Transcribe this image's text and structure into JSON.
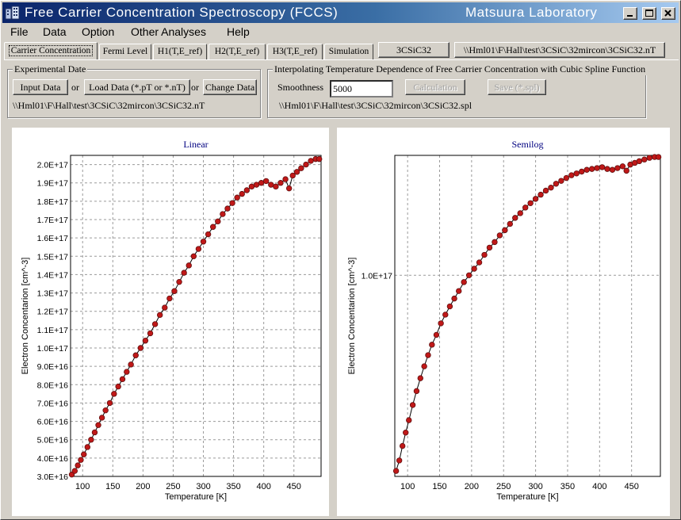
{
  "window": {
    "title": "Free Carrier Concentration Spectroscopy (FCCS)",
    "lab": "Matsuura Laboratory"
  },
  "menu": [
    "File",
    "Data",
    "Option",
    "Other Analyses",
    "Help"
  ],
  "tabs": [
    "Carrier Concentration",
    "Fermi Level",
    "H1(T,E_ref)",
    "H2(T,E_ref)",
    "H3(T,E_ref)",
    "Simulation"
  ],
  "header_fields": {
    "sample_name": "3CSiC32",
    "file_path": "\\\\Hml01\\F\\Hall\\test\\3CSiC\\32mircon\\3CSiC32.nT"
  },
  "experimental": {
    "legend": "Experimental Date",
    "input_button": "Input Data",
    "or1": "or",
    "load_button": "Load Data (*.pT or *.nT)",
    "or2": "or",
    "change_button": "Change Data",
    "path": "\\\\Hml01\\F\\Hall\\test\\3CSiC\\32mircon\\3CSiC32.nT"
  },
  "interpolation": {
    "legend": "Interpolating Temperature Dependence of Free Carrier Concentration with Cubic Spline Function",
    "smoothness_label": "Smoothness",
    "smoothness_value": "5000",
    "calc_button": "Calculation",
    "save_button": "Save (*.spl)",
    "path": "\\\\Hml01\\F\\Hall\\test\\3CSiC\\32mircon\\3CSiC32.spl"
  },
  "chart_data": [
    {
      "type": "scatter",
      "title": "Linear",
      "xlabel": "Temperature  [K]",
      "ylabel": "Electron Concentarion  [cm^-3]",
      "xlim": [
        80,
        495
      ],
      "ylim": [
        3e+16,
        2.05e+17
      ],
      "x_ticks": [
        100,
        150,
        200,
        250,
        300,
        350,
        400,
        450
      ],
      "x_tick_labels": [
        "100",
        "150",
        "200",
        "250",
        "300",
        "350",
        "400",
        "450"
      ],
      "y_ticks": [
        3e+16,
        4e+16,
        5e+16,
        6e+16,
        7e+16,
        8e+16,
        9e+16,
        1e+17,
        1.1e+17,
        1.2e+17,
        1.3e+17,
        1.4e+17,
        1.5e+17,
        1.6e+17,
        1.7e+17,
        1.8e+17,
        1.9e+17,
        2e+17
      ],
      "y_tick_labels": [
        "3.0E+16",
        "4.0E+16",
        "5.0E+16",
        "6.0E+16",
        "7.0E+16",
        "8.0E+16",
        "9.0E+16",
        "1.0E+17",
        "1.1E+17",
        "1.2E+17",
        "1.3E+17",
        "1.4E+17",
        "1.5E+17",
        "1.6E+17",
        "1.7E+17",
        "1.8E+17",
        "1.9E+17",
        "2.0E+17"
      ],
      "grid": true,
      "log_y": false,
      "x": [
        82,
        87,
        92,
        97,
        102,
        108,
        114,
        120,
        126,
        132,
        138,
        145,
        152,
        159,
        166,
        173,
        180,
        188,
        196,
        204,
        212,
        220,
        228,
        236,
        244,
        252,
        260,
        268,
        276,
        284,
        292,
        300,
        308,
        316,
        324,
        332,
        340,
        348,
        356,
        364,
        372,
        380,
        388,
        396,
        404,
        412,
        420,
        428,
        436,
        442,
        448,
        455,
        462,
        470,
        478,
        486,
        492
      ],
      "y": [
        3.1e+16,
        3.3e+16,
        3.6e+16,
        3.9e+16,
        4.2e+16,
        4.6e+16,
        5e+16,
        5.4e+16,
        5.8e+16,
        6.2e+16,
        6.6e+16,
        7e+16,
        7.5e+16,
        7.9e+16,
        8.3e+16,
        8.7e+16,
        9.1e+16,
        9.6e+16,
        1e+17,
        1.04e+17,
        1.08e+17,
        1.13e+17,
        1.18e+17,
        1.22e+17,
        1.27e+17,
        1.31e+17,
        1.36e+17,
        1.41e+17,
        1.45e+17,
        1.5e+17,
        1.54e+17,
        1.58e+17,
        1.62e+17,
        1.66e+17,
        1.69e+17,
        1.73e+17,
        1.76e+17,
        1.79e+17,
        1.82e+17,
        1.84e+17,
        1.86e+17,
        1.88e+17,
        1.89e+17,
        1.9e+17,
        1.91e+17,
        1.89e+17,
        1.88e+17,
        1.9e+17,
        1.92e+17,
        1.87e+17,
        1.94e+17,
        1.96e+17,
        1.98e+17,
        2e+17,
        2.02e+17,
        2.03e+17,
        2.03e+17
      ]
    },
    {
      "type": "scatter",
      "title": "Semilog",
      "xlabel": "Temperature  [K]",
      "ylabel": "Electron Concentarion  [cm^-3]",
      "xlim": [
        80,
        495
      ],
      "ylim": [
        3e+16,
        2.05e+17
      ],
      "x_ticks": [
        100,
        150,
        200,
        250,
        300,
        350,
        400,
        450
      ],
      "x_tick_labels": [
        "100",
        "150",
        "200",
        "250",
        "300",
        "350",
        "400",
        "450"
      ],
      "y_ticks": [
        1e+17
      ],
      "y_tick_labels": [
        "1.0E+17"
      ],
      "grid": true,
      "log_y": true,
      "x": [
        82,
        87,
        92,
        97,
        102,
        108,
        114,
        120,
        126,
        132,
        138,
        145,
        152,
        159,
        166,
        173,
        180,
        188,
        196,
        204,
        212,
        220,
        228,
        236,
        244,
        252,
        260,
        268,
        276,
        284,
        292,
        300,
        308,
        316,
        324,
        332,
        340,
        348,
        356,
        364,
        372,
        380,
        388,
        396,
        404,
        412,
        420,
        428,
        436,
        442,
        448,
        455,
        462,
        470,
        478,
        486,
        492
      ],
      "y": [
        3.1e+16,
        3.3e+16,
        3.6e+16,
        3.9e+16,
        4.2e+16,
        4.6e+16,
        5e+16,
        5.4e+16,
        5.8e+16,
        6.2e+16,
        6.6e+16,
        7e+16,
        7.5e+16,
        7.9e+16,
        8.3e+16,
        8.7e+16,
        9.1e+16,
        9.6e+16,
        1e+17,
        1.04e+17,
        1.08e+17,
        1.13e+17,
        1.18e+17,
        1.22e+17,
        1.27e+17,
        1.31e+17,
        1.36e+17,
        1.41e+17,
        1.45e+17,
        1.5e+17,
        1.54e+17,
        1.58e+17,
        1.62e+17,
        1.66e+17,
        1.69e+17,
        1.73e+17,
        1.76e+17,
        1.79e+17,
        1.82e+17,
        1.84e+17,
        1.86e+17,
        1.88e+17,
        1.89e+17,
        1.9e+17,
        1.91e+17,
        1.89e+17,
        1.88e+17,
        1.9e+17,
        1.92e+17,
        1.87e+17,
        1.94e+17,
        1.96e+17,
        1.98e+17,
        2e+17,
        2.02e+17,
        2.03e+17,
        2.03e+17
      ]
    }
  ],
  "colors": {
    "marker_fill": "#c01818",
    "marker_stroke": "#601010",
    "line": "#000000",
    "plot_title": "#000080",
    "grid": "#9a9a9a"
  }
}
